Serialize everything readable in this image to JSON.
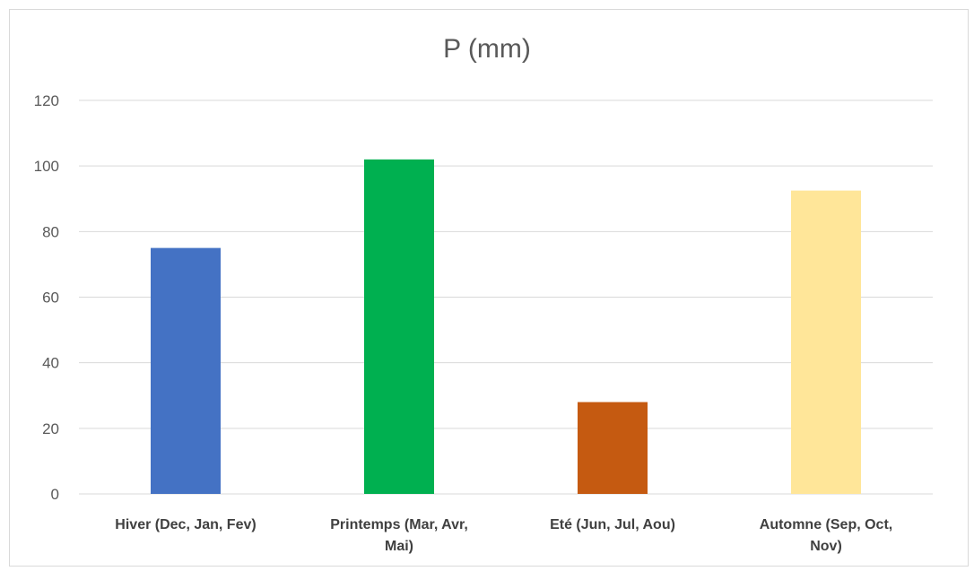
{
  "chart_data": {
    "type": "bar",
    "title": "P (mm)",
    "xlabel": "",
    "ylabel": "",
    "ylim": [
      0,
      120
    ],
    "yticks": [
      0,
      20,
      40,
      60,
      80,
      100,
      120
    ],
    "grid": true,
    "legend": "none",
    "categories": [
      [
        "Hiver (Dec, Jan, Fev)"
      ],
      [
        "Printemps (Mar, Avr,",
        "Mai)"
      ],
      [
        "Eté (Jun, Jul, Aou)"
      ],
      [
        "Automne (Sep, Oct,",
        "Nov)"
      ]
    ],
    "values": [
      75,
      102,
      28,
      92.5
    ],
    "colors": [
      "#4472c4",
      "#00b050",
      "#c55a11",
      "#ffe699"
    ]
  }
}
